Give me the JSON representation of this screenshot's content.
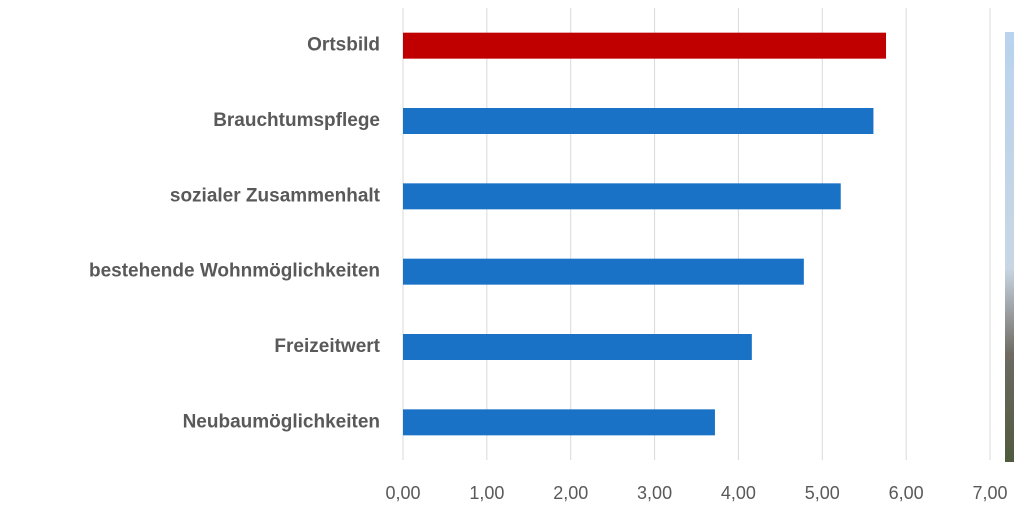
{
  "chart_data": {
    "type": "barh",
    "categories": [
      "Ortsbild",
      "Brauchtumspflege",
      "sozialer Zusammenhalt",
      "bestehende Wohnmöglichkeiten",
      "Freizeitwert",
      "Neubaumöglichkeiten"
    ],
    "values": [
      5.76,
      5.61,
      5.22,
      4.78,
      4.16,
      3.72
    ],
    "colors": [
      "#c00000",
      "#1a72c6",
      "#1a72c6",
      "#1a72c6",
      "#1a72c6",
      "#1a72c6"
    ],
    "xlim": [
      0,
      7
    ],
    "xticks": [
      {
        "value": 0,
        "label": "0,00"
      },
      {
        "value": 1,
        "label": "1,00"
      },
      {
        "value": 2,
        "label": "2,00"
      },
      {
        "value": 3,
        "label": "3,00"
      },
      {
        "value": 4,
        "label": "4,00"
      },
      {
        "value": 5,
        "label": "5,00"
      },
      {
        "value": 6,
        "label": "6,00"
      },
      {
        "value": 7,
        "label": "7,00"
      }
    ],
    "grid": true
  }
}
